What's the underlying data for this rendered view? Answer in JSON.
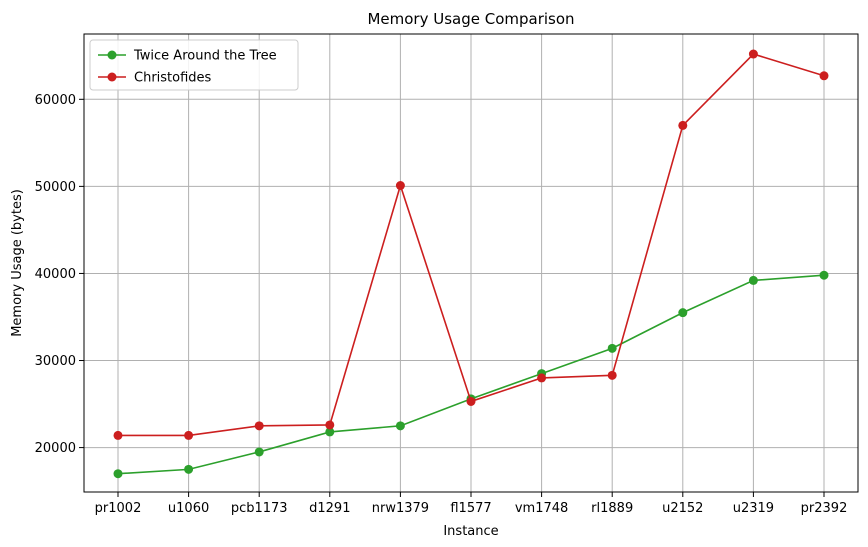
{
  "chart_data": {
    "type": "line",
    "title": "Memory Usage Comparison",
    "xlabel": "Instance",
    "ylabel": "Memory Usage (bytes)",
    "categories": [
      "pr1002",
      "u1060",
      "pcb1173",
      "d1291",
      "nrw1379",
      "fl1577",
      "vm1748",
      "rl1889",
      "u2152",
      "u2319",
      "pr2392"
    ],
    "yticks": [
      20000,
      30000,
      40000,
      50000,
      60000
    ],
    "ylim": [
      14900,
      67500
    ],
    "grid": true,
    "legend_position": "upper-left",
    "series": [
      {
        "name": "Twice Around the Tree",
        "color": "#2ca02c",
        "marker": "circle",
        "values": [
          17000,
          17500,
          19500,
          21800,
          22500,
          25600,
          28500,
          31400,
          35500,
          39200,
          39800
        ]
      },
      {
        "name": "Christofides",
        "color": "#cc1f1f",
        "marker": "circle",
        "values": [
          21400,
          21400,
          22500,
          22600,
          50100,
          25300,
          28000,
          28300,
          57000,
          65200,
          62700
        ]
      }
    ]
  }
}
